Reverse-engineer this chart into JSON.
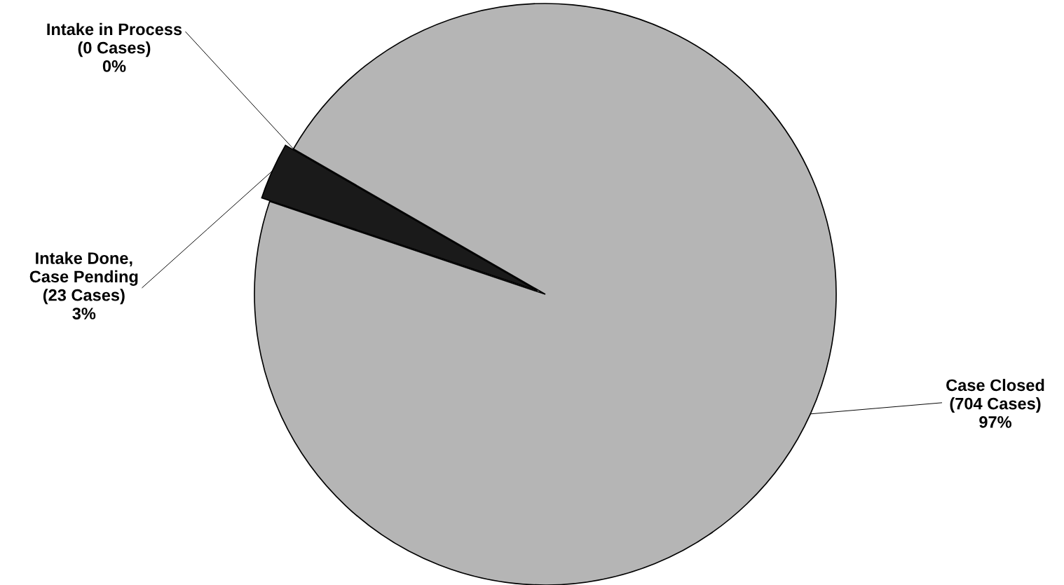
{
  "chart_data": {
    "type": "pie",
    "categories": [
      "Intake in Process",
      "Intake Done,\nCase Pending",
      "Case Closed"
    ],
    "values": [
      0,
      23,
      704
    ],
    "value_labels": [
      "(0 Cases)\n0%",
      "(23 Cases)\n3%",
      "(704 Cases)\n97%"
    ],
    "colors": [
      "#ffffff",
      "#1a1a1a",
      "#b5b5b5"
    ]
  }
}
